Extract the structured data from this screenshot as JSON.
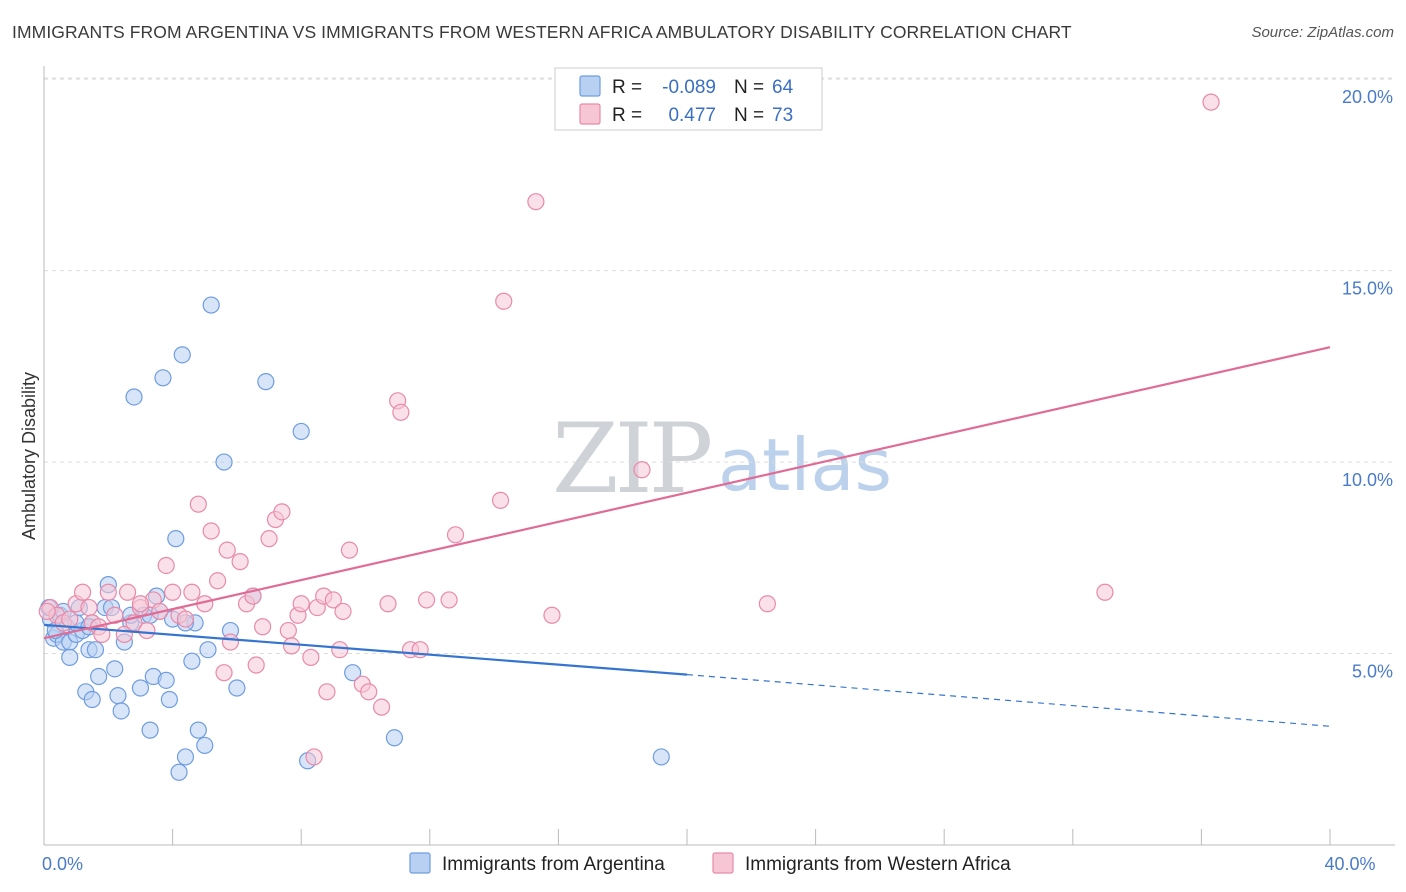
{
  "title": "IMMIGRANTS FROM ARGENTINA VS IMMIGRANTS FROM WESTERN AFRICA AMBULATORY DISABILITY CORRELATION CHART",
  "source": "Source: ZipAtlas.com",
  "watermark": {
    "zip": "ZIP",
    "atlas": "atlas"
  },
  "chart_data": {
    "type": "scatter",
    "ylabel": "Ambulatory Disability",
    "xlim": [
      0,
      40
    ],
    "ylim": [
      0,
      20.5
    ],
    "x_ticks": [
      0,
      4,
      8,
      12,
      16,
      20,
      24,
      28,
      32,
      36,
      40
    ],
    "x_tick_labels": [
      {
        "x": 0,
        "label": "0.0%"
      },
      {
        "x": 40,
        "label": "40.0%"
      }
    ],
    "y_ticks": [
      {
        "y": 5,
        "label": "5.0%"
      },
      {
        "y": 10,
        "label": "10.0%"
      },
      {
        "y": 15,
        "label": "15.0%"
      },
      {
        "y": 20,
        "label": "20.0%"
      }
    ],
    "grid": true,
    "legend": [
      {
        "name": "Immigrants from Argentina",
        "r_label": "R =",
        "r": "-0.089",
        "n_label": "N =",
        "n": "64",
        "color": "#6f9de0",
        "fill": "#b8d0f2"
      },
      {
        "name": "Immigrants from Western Africa",
        "r_label": "R =",
        "r": "0.477",
        "n_label": "N =",
        "n": "73",
        "color": "#e88aa9",
        "fill": "#f6c6d5"
      }
    ],
    "series": [
      {
        "name": "Immigrants from Argentina",
        "color": "#6f9de0",
        "fill": "#b8d0f2",
        "trend": {
          "x0": 0,
          "y0": 5.75,
          "x1": 20,
          "y1": 4.45,
          "dash_to_x": 40,
          "dash_to_y": 3.1,
          "color": "#3575d0"
        },
        "points": [
          [
            0.2,
            5.9
          ],
          [
            0.3,
            5.4
          ],
          [
            0.4,
            5.5
          ],
          [
            0.5,
            6.0
          ],
          [
            0.6,
            5.3
          ],
          [
            0.7,
            5.7
          ],
          [
            0.8,
            5.3
          ],
          [
            0.8,
            4.9
          ],
          [
            1.0,
            5.5
          ],
          [
            1.1,
            6.2
          ],
          [
            1.2,
            5.6
          ],
          [
            1.3,
            4.0
          ],
          [
            1.4,
            5.1
          ],
          [
            1.5,
            3.8
          ],
          [
            1.5,
            5.8
          ],
          [
            1.6,
            5.1
          ],
          [
            1.7,
            4.4
          ],
          [
            1.9,
            6.2
          ],
          [
            2.0,
            6.8
          ],
          [
            2.2,
            4.6
          ],
          [
            2.3,
            3.9
          ],
          [
            2.4,
            3.5
          ],
          [
            2.5,
            5.3
          ],
          [
            2.7,
            5.8
          ],
          [
            2.8,
            11.7
          ],
          [
            3.0,
            4.1
          ],
          [
            3.1,
            6.0
          ],
          [
            3.3,
            3.0
          ],
          [
            3.4,
            4.4
          ],
          [
            3.5,
            6.5
          ],
          [
            3.6,
            6.1
          ],
          [
            3.7,
            12.2
          ],
          [
            3.8,
            4.3
          ],
          [
            3.9,
            3.8
          ],
          [
            4.0,
            5.9
          ],
          [
            4.1,
            8.0
          ],
          [
            4.2,
            1.9
          ],
          [
            4.3,
            12.8
          ],
          [
            4.4,
            2.3
          ],
          [
            4.6,
            4.8
          ],
          [
            4.7,
            5.8
          ],
          [
            4.8,
            3.0
          ],
          [
            5.0,
            2.6
          ],
          [
            5.1,
            5.1
          ],
          [
            5.2,
            14.1
          ],
          [
            5.6,
            10.0
          ],
          [
            5.8,
            5.6
          ],
          [
            6.0,
            4.1
          ],
          [
            6.5,
            6.5
          ],
          [
            6.9,
            12.1
          ],
          [
            8.0,
            10.8
          ],
          [
            8.2,
            2.2
          ],
          [
            9.6,
            4.5
          ],
          [
            10.9,
            2.8
          ],
          [
            19.2,
            2.3
          ],
          [
            0.15,
            6.2
          ],
          [
            0.35,
            5.6
          ],
          [
            2.1,
            6.2
          ],
          [
            3.3,
            6.0
          ],
          [
            4.4,
            5.8
          ],
          [
            1.0,
            5.8
          ],
          [
            0.6,
            6.1
          ],
          [
            2.7,
            6.0
          ],
          [
            1.4,
            5.7
          ]
        ]
      },
      {
        "name": "Immigrants from Western Africa",
        "color": "#e88aa9",
        "fill": "#f6c6d5",
        "trend": {
          "x0": 0,
          "y0": 5.4,
          "x1": 40,
          "y1": 13.0,
          "color": "#e06c96"
        },
        "points": [
          [
            0.2,
            6.2
          ],
          [
            0.4,
            6.0
          ],
          [
            0.6,
            5.8
          ],
          [
            0.8,
            5.9
          ],
          [
            1.0,
            6.3
          ],
          [
            1.2,
            6.6
          ],
          [
            1.4,
            6.2
          ],
          [
            1.5,
            5.8
          ],
          [
            1.7,
            5.7
          ],
          [
            2.0,
            6.6
          ],
          [
            2.2,
            6.0
          ],
          [
            2.5,
            5.5
          ],
          [
            2.6,
            6.6
          ],
          [
            2.8,
            5.8
          ],
          [
            3.0,
            6.2
          ],
          [
            3.2,
            5.6
          ],
          [
            3.4,
            6.4
          ],
          [
            3.6,
            6.1
          ],
          [
            3.8,
            7.3
          ],
          [
            4.0,
            6.6
          ],
          [
            4.2,
            6.0
          ],
          [
            4.4,
            5.9
          ],
          [
            4.6,
            6.6
          ],
          [
            4.8,
            8.9
          ],
          [
            5.0,
            6.3
          ],
          [
            5.2,
            8.2
          ],
          [
            5.4,
            6.9
          ],
          [
            5.6,
            4.5
          ],
          [
            5.7,
            7.7
          ],
          [
            5.8,
            5.3
          ],
          [
            6.1,
            7.4
          ],
          [
            6.3,
            6.3
          ],
          [
            6.5,
            6.5
          ],
          [
            6.6,
            4.7
          ],
          [
            6.8,
            5.7
          ],
          [
            7.0,
            8.0
          ],
          [
            7.2,
            8.5
          ],
          [
            7.4,
            8.7
          ],
          [
            7.6,
            5.6
          ],
          [
            7.7,
            5.2
          ],
          [
            7.9,
            6.0
          ],
          [
            8.0,
            6.3
          ],
          [
            8.3,
            4.9
          ],
          [
            8.5,
            6.2
          ],
          [
            8.7,
            6.5
          ],
          [
            8.8,
            4.0
          ],
          [
            9.0,
            6.4
          ],
          [
            9.2,
            5.1
          ],
          [
            9.3,
            6.1
          ],
          [
            9.5,
            7.7
          ],
          [
            9.9,
            4.2
          ],
          [
            10.1,
            4.0
          ],
          [
            10.5,
            3.6
          ],
          [
            10.7,
            6.3
          ],
          [
            11.0,
            11.6
          ],
          [
            11.1,
            11.3
          ],
          [
            11.4,
            5.1
          ],
          [
            11.7,
            5.1
          ],
          [
            11.9,
            6.4
          ],
          [
            12.6,
            6.4
          ],
          [
            12.8,
            8.1
          ],
          [
            14.2,
            9.0
          ],
          [
            14.3,
            14.2
          ],
          [
            15.3,
            16.8
          ],
          [
            15.8,
            6.0
          ],
          [
            18.6,
            9.8
          ],
          [
            22.5,
            6.3
          ],
          [
            33.0,
            6.6
          ],
          [
            36.3,
            19.4
          ],
          [
            8.4,
            2.3
          ],
          [
            3.0,
            6.3
          ],
          [
            1.8,
            5.5
          ],
          [
            0.1,
            6.1
          ]
        ]
      }
    ]
  }
}
